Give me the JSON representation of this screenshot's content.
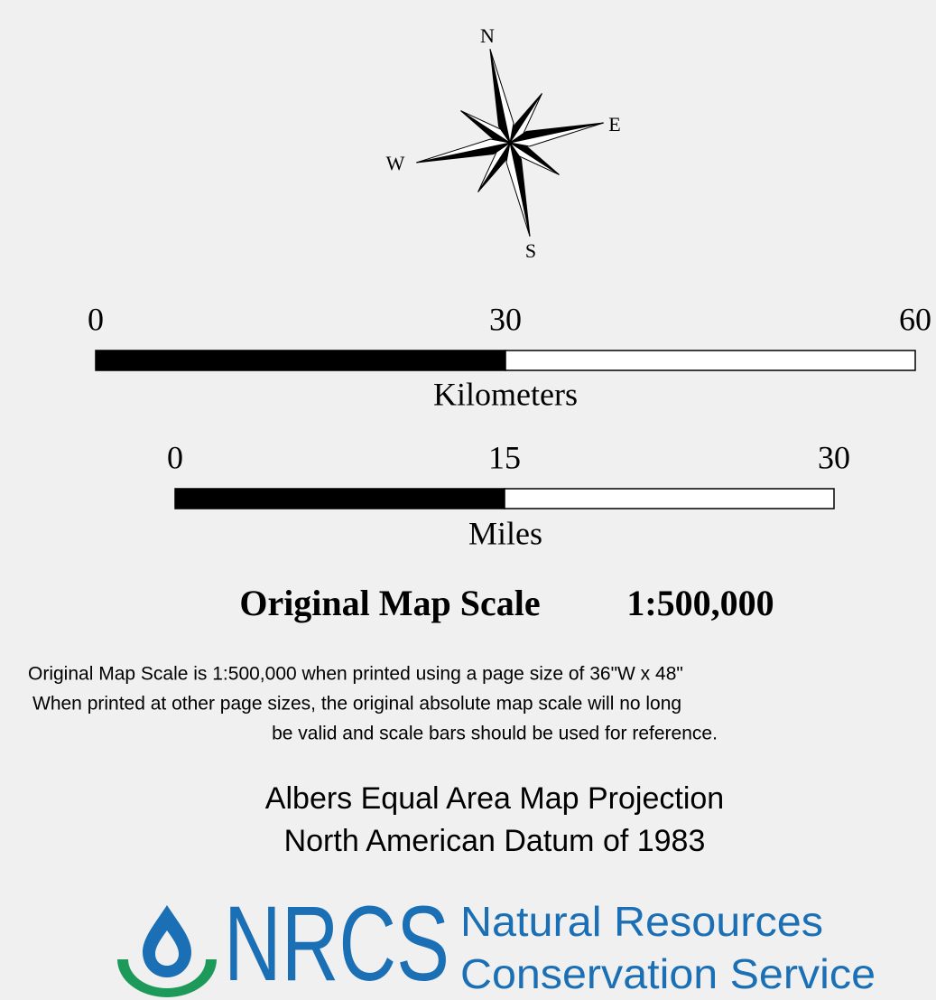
{
  "compass": {
    "north": "N",
    "east": "E",
    "south": "S",
    "west": "W"
  },
  "scale_bars": [
    {
      "ticks": [
        0,
        30,
        60
      ],
      "unit": "Kilometers"
    },
    {
      "ticks": [
        0,
        15,
        30
      ],
      "unit": "Miles"
    }
  ],
  "scale_title": {
    "label": "Original Map Scale",
    "ratio": "1:500,000"
  },
  "note": [
    "Original Map Scale is 1:500,000 when printed using a page size of 36\"W x 48\"",
    "When printed at other page sizes, the original absolute map scale will no long",
    "be valid and scale bars should be used for reference."
  ],
  "projection": [
    "Albers Equal Area Map Projection",
    "North American Datum of 1983"
  ],
  "logo": {
    "acronym": "NRCS",
    "line1": "Natural Resources",
    "line2": "Conservation Service"
  }
}
